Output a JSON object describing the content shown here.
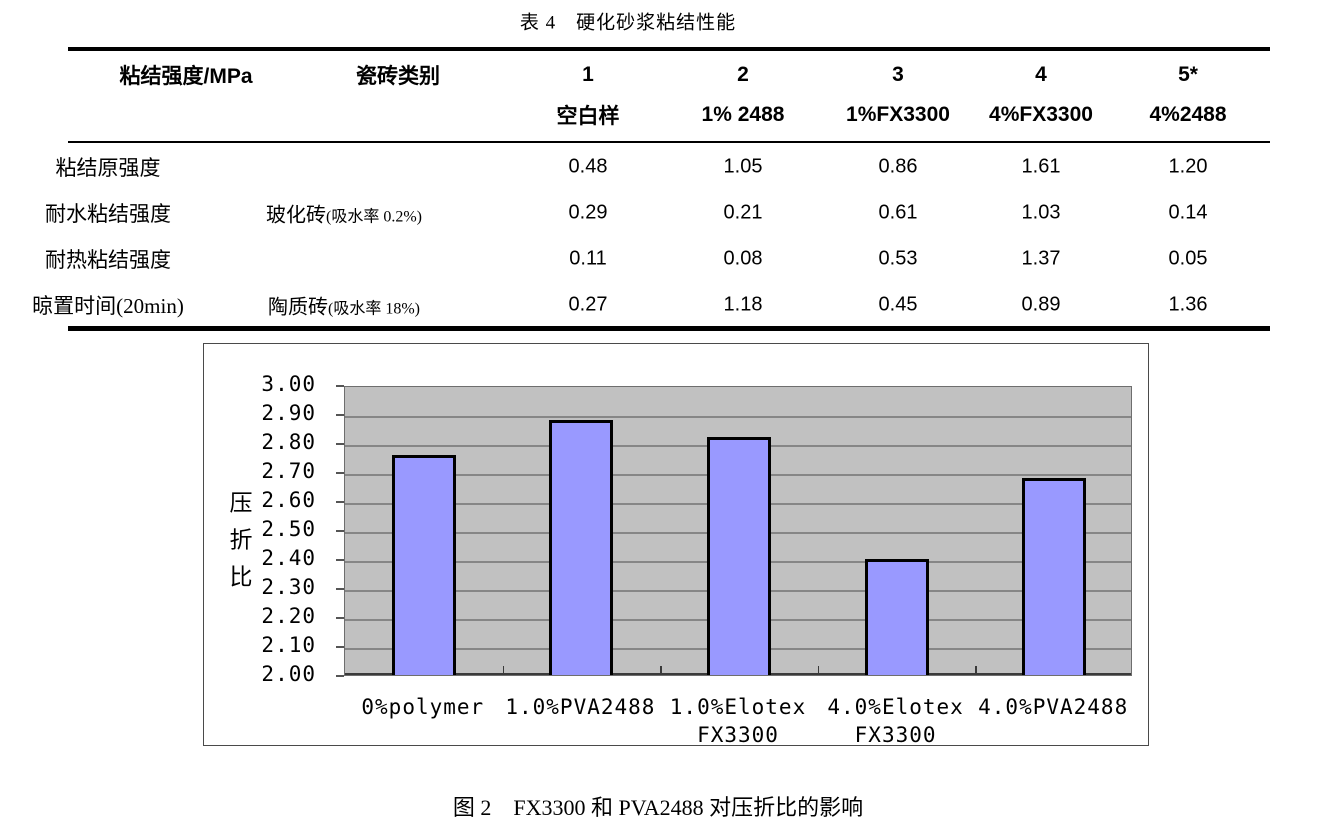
{
  "table": {
    "title": "表 4　硬化砂浆粘结性能",
    "columns": {
      "col1_header": "粘结强度/MPa",
      "col2_header": "瓷砖类别"
    },
    "sample_numbers": [
      "1",
      "2",
      "3",
      "4",
      "5*"
    ],
    "sample_names": [
      "空白样",
      "1% 2488",
      "1%FX3300",
      "4%FX3300",
      "4%2488"
    ],
    "rows": [
      {
        "label": "粘结原强度",
        "tile_main": "",
        "tile_note": "",
        "values": [
          "0.48",
          "1.05",
          "0.86",
          "1.61",
          "1.20"
        ]
      },
      {
        "label": "耐水粘结强度",
        "tile_main": "玻化砖",
        "tile_note": "(吸水率 0.2%)",
        "values": [
          "0.29",
          "0.21",
          "0.61",
          "1.03",
          "0.14"
        ]
      },
      {
        "label": "耐热粘结强度",
        "tile_main": "",
        "tile_note": "",
        "values": [
          "0.11",
          "0.08",
          "0.53",
          "1.37",
          "0.05"
        ]
      },
      {
        "label": "晾置时间(20min)",
        "tile_main": "陶质砖",
        "tile_note": "(吸水率 18%)",
        "values": [
          "0.27",
          "1.18",
          "0.45",
          "0.89",
          "1.36"
        ]
      }
    ]
  },
  "chart_data": {
    "type": "bar",
    "categories": [
      "0%polymer",
      "1.0%PVA2488",
      "1.0%Elotex\nFX3300",
      "4.0%Elotex\nFX3300",
      "4.0%PVA2488"
    ],
    "values": [
      2.76,
      2.88,
      2.82,
      2.4,
      2.68
    ],
    "title": "",
    "xlabel": "",
    "ylabel": "压折比",
    "ylim": [
      2.0,
      3.0
    ],
    "ytick_step": 0.1,
    "grid": true,
    "legend_position": "none",
    "plot_bg_color": "#c1c1c1",
    "gridline_color": "#868686",
    "bar_fill_color": "#9999ff",
    "bar_border_color": "#000000"
  },
  "figure": {
    "caption": "图 2　FX3300 和 PVA2488 对压折比的影响"
  }
}
